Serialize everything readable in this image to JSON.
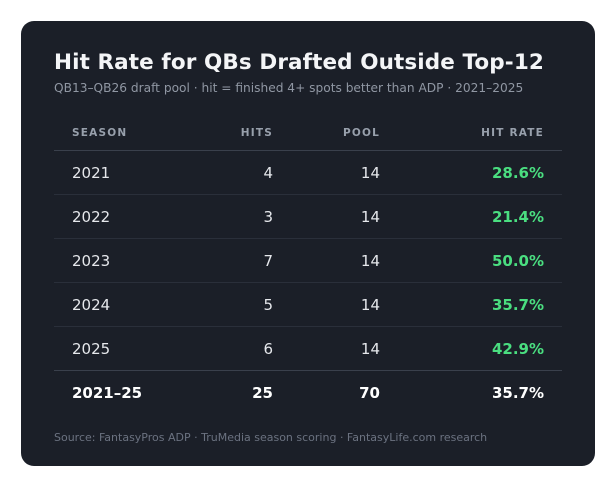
{
  "title": "Hit Rate for QBs Drafted Outside Top-12",
  "subtitle": "QB13–QB26 draft pool · hit = finished 4+ spots better than ADP · 2021–2025",
  "columns": {
    "season": "SEASON",
    "hits": "HITS",
    "pool": "POOL",
    "hit_rate": "HIT RATE"
  },
  "rows": [
    {
      "season": "2021",
      "hits": "4",
      "pool": "14",
      "hit_rate": "28.6%"
    },
    {
      "season": "2022",
      "hits": "3",
      "pool": "14",
      "hit_rate": "21.4%"
    },
    {
      "season": "2023",
      "hits": "7",
      "pool": "14",
      "hit_rate": "50.0%"
    },
    {
      "season": "2024",
      "hits": "5",
      "pool": "14",
      "hit_rate": "35.7%"
    },
    {
      "season": "2025",
      "hits": "6",
      "pool": "14",
      "hit_rate": "42.9%"
    }
  ],
  "total": {
    "season": "2021–25",
    "hits": "25",
    "pool": "70",
    "hit_rate": "35.7%"
  },
  "source": "Source: FantasyPros ADP · TruMedia season scoring · FantasyLife.com research",
  "colors": {
    "background": "#1b1f28",
    "accent": "#4ade80"
  }
}
